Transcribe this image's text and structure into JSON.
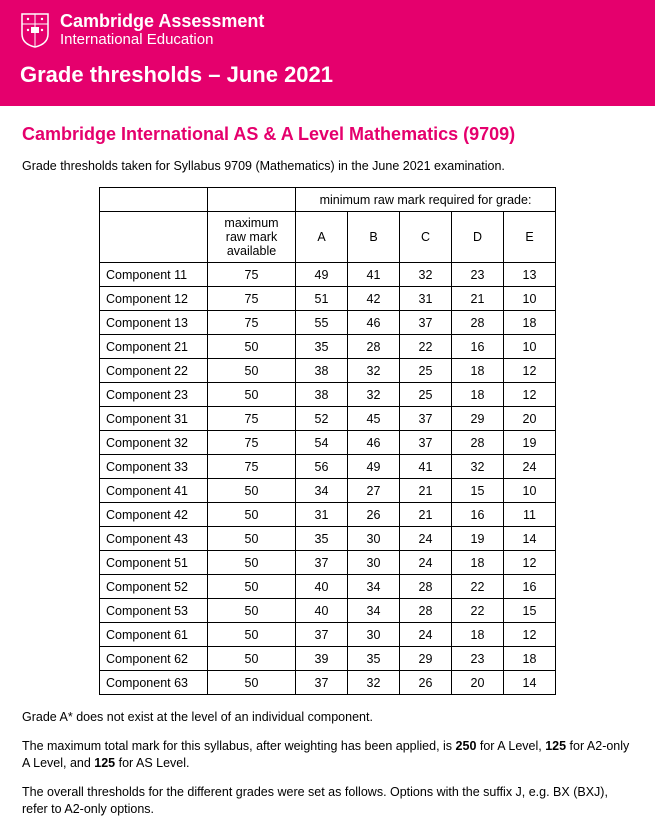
{
  "banner": {
    "brand_line1": "Cambridge Assessment",
    "brand_line2": "International Education",
    "title": "Grade thresholds – June 2021"
  },
  "subject_title": "Cambridge International AS & A Level Mathematics (9709)",
  "intro_text": "Grade thresholds taken for Syllabus 9709 (Mathematics) in the June 2021 examination.",
  "table": {
    "span_header": "minimum raw mark required for grade:",
    "col_max_label": "maximum raw mark available",
    "grade_labels": [
      "A",
      "B",
      "C",
      "D",
      "E"
    ],
    "rows": [
      {
        "component": "Component 11",
        "max": 75,
        "grades": [
          49,
          41,
          32,
          23,
          13
        ]
      },
      {
        "component": "Component 12",
        "max": 75,
        "grades": [
          51,
          42,
          31,
          21,
          10
        ]
      },
      {
        "component": "Component 13",
        "max": 75,
        "grades": [
          55,
          46,
          37,
          28,
          18
        ]
      },
      {
        "component": "Component 21",
        "max": 50,
        "grades": [
          35,
          28,
          22,
          16,
          10
        ]
      },
      {
        "component": "Component 22",
        "max": 50,
        "grades": [
          38,
          32,
          25,
          18,
          12
        ]
      },
      {
        "component": "Component 23",
        "max": 50,
        "grades": [
          38,
          32,
          25,
          18,
          12
        ]
      },
      {
        "component": "Component 31",
        "max": 75,
        "grades": [
          52,
          45,
          37,
          29,
          20
        ]
      },
      {
        "component": "Component 32",
        "max": 75,
        "grades": [
          54,
          46,
          37,
          28,
          19
        ]
      },
      {
        "component": "Component 33",
        "max": 75,
        "grades": [
          56,
          49,
          41,
          32,
          24
        ]
      },
      {
        "component": "Component 41",
        "max": 50,
        "grades": [
          34,
          27,
          21,
          15,
          10
        ]
      },
      {
        "component": "Component 42",
        "max": 50,
        "grades": [
          31,
          26,
          21,
          16,
          11
        ]
      },
      {
        "component": "Component 43",
        "max": 50,
        "grades": [
          35,
          30,
          24,
          19,
          14
        ]
      },
      {
        "component": "Component 51",
        "max": 50,
        "grades": [
          37,
          30,
          24,
          18,
          12
        ]
      },
      {
        "component": "Component 52",
        "max": 50,
        "grades": [
          40,
          34,
          28,
          22,
          16
        ]
      },
      {
        "component": "Component 53",
        "max": 50,
        "grades": [
          40,
          34,
          28,
          22,
          15
        ]
      },
      {
        "component": "Component 61",
        "max": 50,
        "grades": [
          37,
          30,
          24,
          18,
          12
        ]
      },
      {
        "component": "Component 62",
        "max": 50,
        "grades": [
          39,
          35,
          29,
          23,
          18
        ]
      },
      {
        "component": "Component 63",
        "max": 50,
        "grades": [
          37,
          32,
          26,
          20,
          14
        ]
      }
    ]
  },
  "notes": {
    "n1": "Grade A* does not exist at the level of an individual component.",
    "n2_pre": "The maximum total mark for this syllabus, after weighting has been applied, is ",
    "n2_b1": "250",
    "n2_mid1": " for A Level, ",
    "n2_b2": "125",
    "n2_mid2": " for A2-only A Level, and ",
    "n2_b3": "125",
    "n2_post": " for AS Level.",
    "n3": "The overall thresholds for the different grades were set as follows. Options with the suffix J, e.g. BX (BXJ), refer to A2-only options."
  },
  "colors": {
    "brand": "#e5006d",
    "text": "#000000",
    "bg": "#ffffff"
  }
}
